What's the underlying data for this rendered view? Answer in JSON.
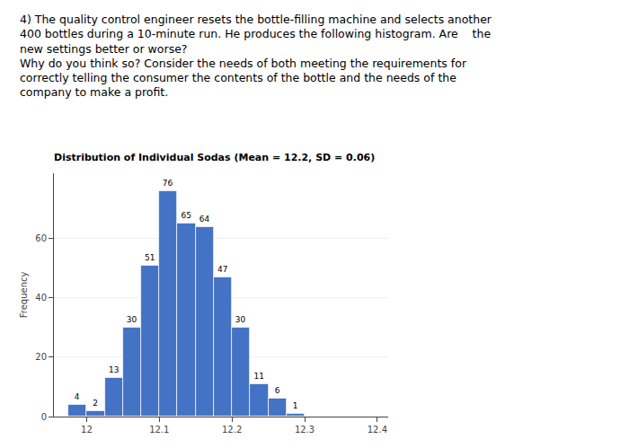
{
  "chart_data": {
    "type": "histogram",
    "title": "Distribution of Individual Sodas (Mean = 12.2, SD = 0.06)",
    "annotations": [
      "4) The quality control engineer resets the bottle-filling machine and selects another\n400 bottles during a 10-minute run. He produces the following histogram. Are    the\nnew settings better or worse?\nWhy do you think so? Consider the needs of both meeting the requirements for\ncorrectly telling the consumer the contents of the bottle and the needs of the\ncompany to make a profit."
    ],
    "ylabel": "Frequency",
    "bins": [
      11.975,
      12.0,
      12.025,
      12.05,
      12.075,
      12.1,
      12.125,
      12.15,
      12.175,
      12.2,
      12.225,
      12.25,
      12.275,
      12.3
    ],
    "values": [
      4,
      2,
      13,
      30,
      51,
      76,
      65,
      64,
      47,
      30,
      11,
      6,
      1
    ],
    "color": "#4472C4",
    "xlim": [
      11.955,
      12.415
    ],
    "xticks": [
      12,
      12.1,
      12.2,
      12.3,
      12.4
    ],
    "ylim": [
      0,
      82
    ],
    "yticks": [
      0,
      20,
      40,
      60
    ],
    "grid": "y",
    "data_labels": true
  }
}
